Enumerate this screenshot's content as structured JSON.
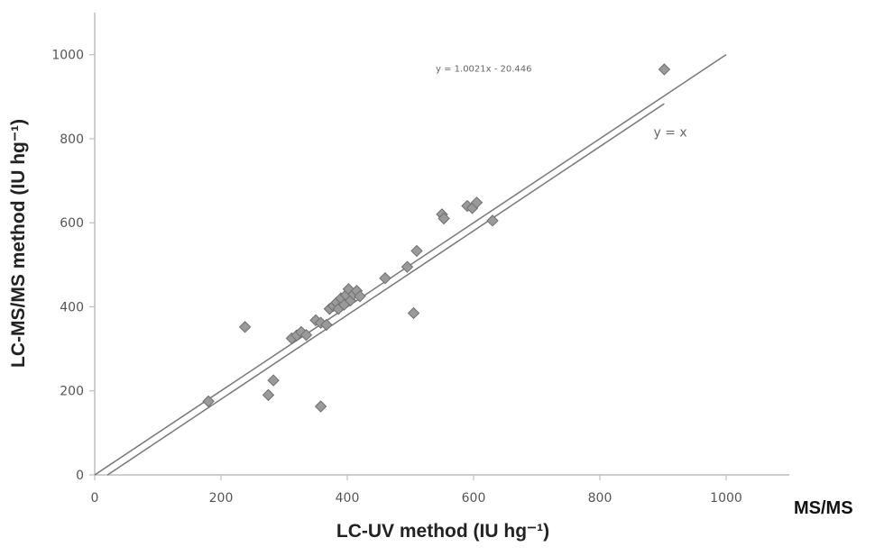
{
  "chart_data": {
    "type": "scatter",
    "xlabel": "LC-UV method (IU hg⁻¹)",
    "ylabel": "LC-MS/MS method (IU hg⁻¹)",
    "xlim": [
      0,
      1100
    ],
    "ylim": [
      0,
      1100
    ],
    "x_ticks": [
      0,
      200,
      400,
      600,
      800,
      1000
    ],
    "y_ticks": [
      0,
      200,
      400,
      600,
      800,
      1000
    ],
    "x_tick_labels": [
      "0",
      "200",
      "400",
      "600",
      "800",
      "1000"
    ],
    "y_tick_labels": [
      "0",
      "200",
      "400",
      "600",
      "800",
      "1000"
    ],
    "grid": false,
    "marker": "diamond",
    "marker_color": "#9a9a9a",
    "line_color": "#777777",
    "points": [
      {
        "x": 180,
        "y": 175
      },
      {
        "x": 238,
        "y": 352
      },
      {
        "x": 275,
        "y": 190
      },
      {
        "x": 283,
        "y": 225
      },
      {
        "x": 312,
        "y": 325
      },
      {
        "x": 320,
        "y": 332
      },
      {
        "x": 327,
        "y": 340
      },
      {
        "x": 335,
        "y": 333
      },
      {
        "x": 350,
        "y": 368
      },
      {
        "x": 358,
        "y": 362
      },
      {
        "x": 358,
        "y": 163
      },
      {
        "x": 367,
        "y": 357
      },
      {
        "x": 372,
        "y": 395
      },
      {
        "x": 378,
        "y": 402
      },
      {
        "x": 383,
        "y": 410
      },
      {
        "x": 386,
        "y": 395
      },
      {
        "x": 390,
        "y": 420
      },
      {
        "x": 395,
        "y": 405
      },
      {
        "x": 398,
        "y": 428
      },
      {
        "x": 402,
        "y": 442
      },
      {
        "x": 405,
        "y": 415
      },
      {
        "x": 410,
        "y": 430
      },
      {
        "x": 415,
        "y": 438
      },
      {
        "x": 420,
        "y": 425
      },
      {
        "x": 460,
        "y": 468
      },
      {
        "x": 495,
        "y": 495
      },
      {
        "x": 505,
        "y": 385
      },
      {
        "x": 510,
        "y": 533
      },
      {
        "x": 550,
        "y": 620
      },
      {
        "x": 553,
        "y": 610
      },
      {
        "x": 590,
        "y": 640
      },
      {
        "x": 598,
        "y": 635
      },
      {
        "x": 605,
        "y": 648
      },
      {
        "x": 630,
        "y": 605
      },
      {
        "x": 902,
        "y": 965
      }
    ],
    "lines": [
      {
        "label": "y = 1.0021x - 20.446",
        "slope": 1.0021,
        "intercept": -20.446,
        "x_range": [
          20,
          902
        ]
      },
      {
        "label": "y = x",
        "slope": 1,
        "intercept": 0,
        "x_range": [
          0,
          1000
        ]
      }
    ],
    "annotations": [
      {
        "text": "y = 1.0021x - 20.446",
        "x": 540,
        "y": 960
      },
      {
        "text": "y = x",
        "x": 885,
        "y": 805
      }
    ]
  },
  "clipped_text": "MS/MS"
}
